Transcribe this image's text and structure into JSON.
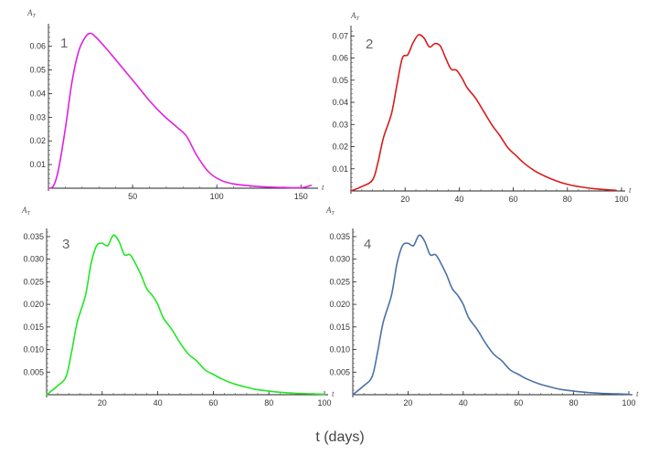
{
  "xlabel": "t (days)",
  "chart_data": [
    {
      "type": "line",
      "panel_label": "1",
      "ylabel": "A_T",
      "xaxis_label": "t",
      "color": "#e020e0",
      "xlim": [
        0,
        158
      ],
      "ylim": [
        0,
        0.068
      ],
      "xticks": [
        50,
        100,
        150
      ],
      "yticks": [
        0.01,
        0.02,
        0.03,
        0.04,
        0.05,
        0.06
      ],
      "ytick_labels": [
        "0.01",
        "0.02",
        "0.03",
        "0.04",
        "0.05",
        "0.06"
      ],
      "series": [
        {
          "name": "1",
          "x": [
            0,
            3,
            6,
            10,
            14,
            18,
            22,
            25,
            28,
            32,
            38,
            45,
            52,
            60,
            68,
            76,
            82,
            88,
            95,
            102,
            110,
            120,
            130,
            140,
            150,
            156
          ],
          "y": [
            0,
            0.001,
            0.008,
            0.025,
            0.045,
            0.058,
            0.064,
            0.0655,
            0.064,
            0.061,
            0.056,
            0.05,
            0.044,
            0.037,
            0.031,
            0.026,
            0.022,
            0.014,
            0.007,
            0.0035,
            0.0018,
            0.001,
            0.0005,
            0.0003,
            0.0002,
            0.0012
          ]
        }
      ]
    },
    {
      "type": "line",
      "panel_label": "2",
      "ylabel": "A_T",
      "xaxis_label": "t",
      "color": "#d81b1b",
      "xlim": [
        0,
        100
      ],
      "ylim": [
        0,
        0.073
      ],
      "xticks": [
        20,
        40,
        60,
        80,
        100
      ],
      "yticks": [
        0.01,
        0.02,
        0.03,
        0.04,
        0.05,
        0.06,
        0.07
      ],
      "ytick_labels": [
        "0.01",
        "0.02",
        "0.03",
        "0.04",
        "0.05",
        "0.06",
        "0.07"
      ],
      "series": [
        {
          "name": "2",
          "x": [
            0,
            4,
            8,
            10,
            12,
            15,
            17,
            19,
            21,
            23,
            25,
            27,
            29,
            31,
            33,
            35,
            37,
            39,
            41,
            43,
            46,
            49,
            52,
            55,
            58,
            61,
            64,
            68,
            72,
            76,
            80,
            85,
            90,
            95,
            98
          ],
          "y": [
            0,
            0.002,
            0.005,
            0.013,
            0.024,
            0.035,
            0.048,
            0.06,
            0.0615,
            0.067,
            0.0705,
            0.069,
            0.065,
            0.0665,
            0.0655,
            0.06,
            0.055,
            0.0545,
            0.051,
            0.0465,
            0.042,
            0.036,
            0.03,
            0.025,
            0.0195,
            0.016,
            0.0125,
            0.009,
            0.0065,
            0.0045,
            0.003,
            0.0018,
            0.001,
            0.0005,
            0.0003
          ]
        }
      ]
    },
    {
      "type": "line",
      "panel_label": "3",
      "ylabel": "A_T",
      "xaxis_label": "t",
      "color": "#22e622",
      "xlim": [
        0,
        100
      ],
      "ylim": [
        0,
        0.036
      ],
      "xticks": [
        20,
        40,
        60,
        80,
        100
      ],
      "yticks": [
        0.005,
        0.01,
        0.015,
        0.02,
        0.025,
        0.03,
        0.035
      ],
      "ytick_labels": [
        "0.005",
        "0.010",
        "0.015",
        "0.020",
        "0.025",
        "0.030",
        "0.035"
      ],
      "series": [
        {
          "name": "3",
          "x": [
            0,
            4,
            7,
            9,
            11,
            14,
            16,
            18,
            20,
            22,
            24,
            26,
            28,
            30,
            32,
            34,
            36,
            38,
            40,
            42,
            45,
            48,
            51,
            54,
            57,
            60,
            63,
            67,
            71,
            75,
            80,
            85,
            90,
            95,
            100
          ],
          "y": [
            0,
            0.002,
            0.004,
            0.0095,
            0.016,
            0.022,
            0.029,
            0.033,
            0.0335,
            0.033,
            0.0353,
            0.034,
            0.031,
            0.031,
            0.029,
            0.0265,
            0.0235,
            0.022,
            0.02,
            0.017,
            0.0145,
            0.0115,
            0.009,
            0.0075,
            0.0055,
            0.0045,
            0.0035,
            0.0025,
            0.0018,
            0.0012,
            0.0008,
            0.0005,
            0.0003,
            0.0002,
            0.0001
          ]
        }
      ]
    },
    {
      "type": "line",
      "panel_label": "4",
      "ylabel": "A_T",
      "xaxis_label": "t",
      "color": "#4a72a8",
      "xlim": [
        0,
        100
      ],
      "ylim": [
        0,
        0.036
      ],
      "xticks": [
        20,
        40,
        60,
        80,
        100
      ],
      "yticks": [
        0.005,
        0.01,
        0.015,
        0.02,
        0.025,
        0.03,
        0.035
      ],
      "ytick_labels": [
        "0.005",
        "0.010",
        "0.015",
        "0.020",
        "0.025",
        "0.030",
        "0.035"
      ],
      "series": [
        {
          "name": "4",
          "x": [
            0,
            4,
            7,
            9,
            11,
            14,
            16,
            18,
            20,
            22,
            24,
            26,
            28,
            30,
            32,
            34,
            36,
            38,
            40,
            42,
            45,
            48,
            51,
            54,
            57,
            60,
            63,
            67,
            71,
            75,
            80,
            85,
            90,
            95,
            100
          ],
          "y": [
            0,
            0.002,
            0.004,
            0.0095,
            0.016,
            0.022,
            0.029,
            0.033,
            0.0335,
            0.033,
            0.0353,
            0.034,
            0.031,
            0.031,
            0.029,
            0.0265,
            0.0235,
            0.022,
            0.02,
            0.017,
            0.0145,
            0.0115,
            0.009,
            0.0075,
            0.0055,
            0.0045,
            0.0035,
            0.0025,
            0.0018,
            0.0012,
            0.0008,
            0.0005,
            0.0003,
            0.0002,
            0.0001
          ]
        }
      ]
    }
  ]
}
